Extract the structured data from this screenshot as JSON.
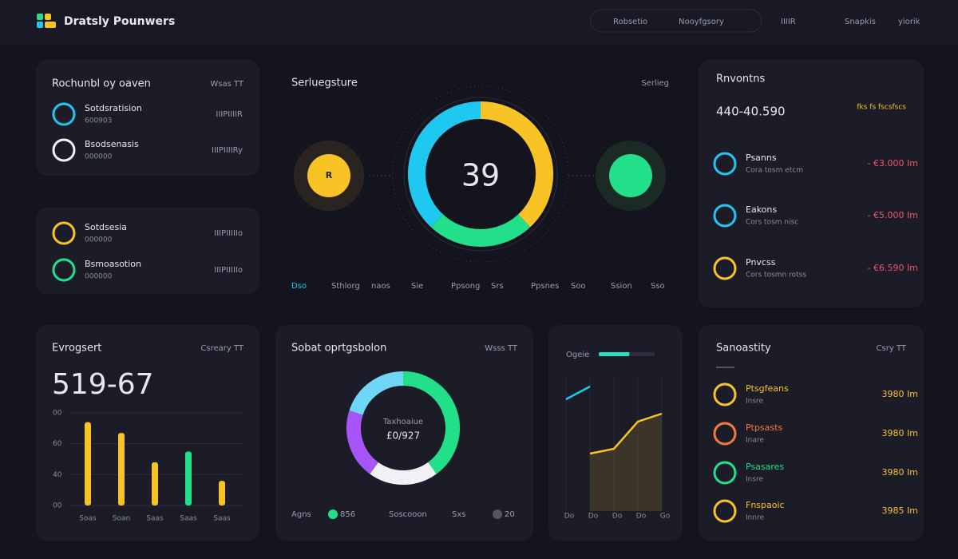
{
  "header": {
    "brand": "Dratsly Pounwers",
    "search": "Robsetio",
    "search2": "Nooyfgsory",
    "nav": [
      "IIIIR",
      "Snapkis",
      "yiorik"
    ]
  },
  "card_a": {
    "title": "Rochunbl oy oaven",
    "meta": "Wsas TT",
    "items": [
      {
        "label": "Sotdsratision",
        "sub": "600903",
        "value": "IIIPIIIIR"
      },
      {
        "label": "Bsodsenasis",
        "sub": "000000",
        "value": "IIIPIIIIRy"
      }
    ]
  },
  "card_b": {
    "items": [
      {
        "label": "Sotdsesia",
        "sub": "000000",
        "value": "IIIPIIIIIo"
      },
      {
        "label": "Bsmoasotion",
        "sub": "000000",
        "value": "IIIPIIIIIo"
      }
    ]
  },
  "gauge": {
    "title": "Serluegsture",
    "meta": "Serlieg",
    "value": 39,
    "left_icon": "R",
    "segments": [
      {
        "color": "#f7c325",
        "value": 38
      },
      {
        "color": "#22e08a",
        "value": 24
      },
      {
        "color": "#1fc8f0",
        "value": 38
      }
    ],
    "legend": [
      "Dso",
      "Sthlorg",
      "naos",
      "Sie",
      "Ppsong",
      "Srs",
      "Ppsnes",
      "Soo",
      "Ssion",
      "Sso"
    ]
  },
  "revenue": {
    "title": "Rnvontns",
    "total": "440-40.590",
    "badge": "fks fs fscsfscs",
    "items": [
      {
        "label": "Psanns",
        "sub": "Cora tosm etcm",
        "value": "- €3.000 Im"
      },
      {
        "label": "Eakons",
        "sub": "Cors tosm nisc",
        "value": "- €5.000 Im"
      },
      {
        "label": "Pnvcss",
        "sub": "Cors tosmn rotss",
        "value": "- €6.590 Im"
      }
    ]
  },
  "bars": {
    "title": "Evrogsert",
    "meta": "Csreary TT",
    "total": "519-67",
    "ylim": [
      0,
      3
    ],
    "yticks": [
      {
        "value": 0,
        "label": "00"
      },
      {
        "value": 1,
        "label": "40"
      },
      {
        "value": 2,
        "label": "60"
      },
      {
        "value": 3,
        "label": "00"
      }
    ],
    "categories": [
      "Soas",
      "Soan",
      "Saas",
      "Saas",
      "Saas"
    ],
    "values": [
      2.7,
      2.35,
      1.4,
      1.75,
      0.8
    ],
    "colors": [
      "#f7c325",
      "#f7c325",
      "#f7c325",
      "#22e08a",
      "#f7c325"
    ]
  },
  "donut": {
    "title": "Sobat oprtgsbolon",
    "meta": "Wsss TT",
    "center_label": "Taxhoaiue",
    "center_value": "£0/927",
    "segments": [
      {
        "color": "#22e08a",
        "value": 40
      },
      {
        "color": "#f1f1f5",
        "value": 20
      },
      {
        "color": "#a855f7",
        "value": 20
      },
      {
        "color": "#6fd6f5",
        "value": 20
      }
    ],
    "legend": [
      {
        "label": "Agns"
      },
      {
        "color": "#22e08a",
        "label": "856"
      },
      {
        "label": "Soscooon"
      },
      {
        "label": "Sxs"
      },
      {
        "color": "#55565f",
        "label": "20"
      }
    ]
  },
  "line": {
    "label": "Ogeie",
    "progress": 55,
    "x": [
      "Do",
      "Do",
      "Do",
      "Do",
      "Go"
    ],
    "ylim": [
      0,
      100
    ],
    "series": [
      {
        "color": "#1fc8f0",
        "values": [
          70,
          78,
          null,
          null,
          null
        ]
      },
      {
        "color": "#f7c325",
        "values": [
          null,
          36,
          39,
          56,
          61
        ]
      }
    ]
  },
  "sparsity": {
    "title": "Sanoastity",
    "meta": "Csry TT",
    "items": [
      {
        "label": "Ptsgfeans",
        "sub": "Insre",
        "value": "3980 Im",
        "color": "#f7c325"
      },
      {
        "label": "Ptpsasts",
        "sub": "Inare",
        "value": "3980 Im",
        "color": "#f57a3a"
      },
      {
        "label": "Psasares",
        "sub": "Insre",
        "value": "3980 Im",
        "color": "#22e08a"
      },
      {
        "label": "Fnspaoic",
        "sub": "Innre",
        "value": "3985 Im",
        "color": "#f7c325"
      }
    ]
  }
}
